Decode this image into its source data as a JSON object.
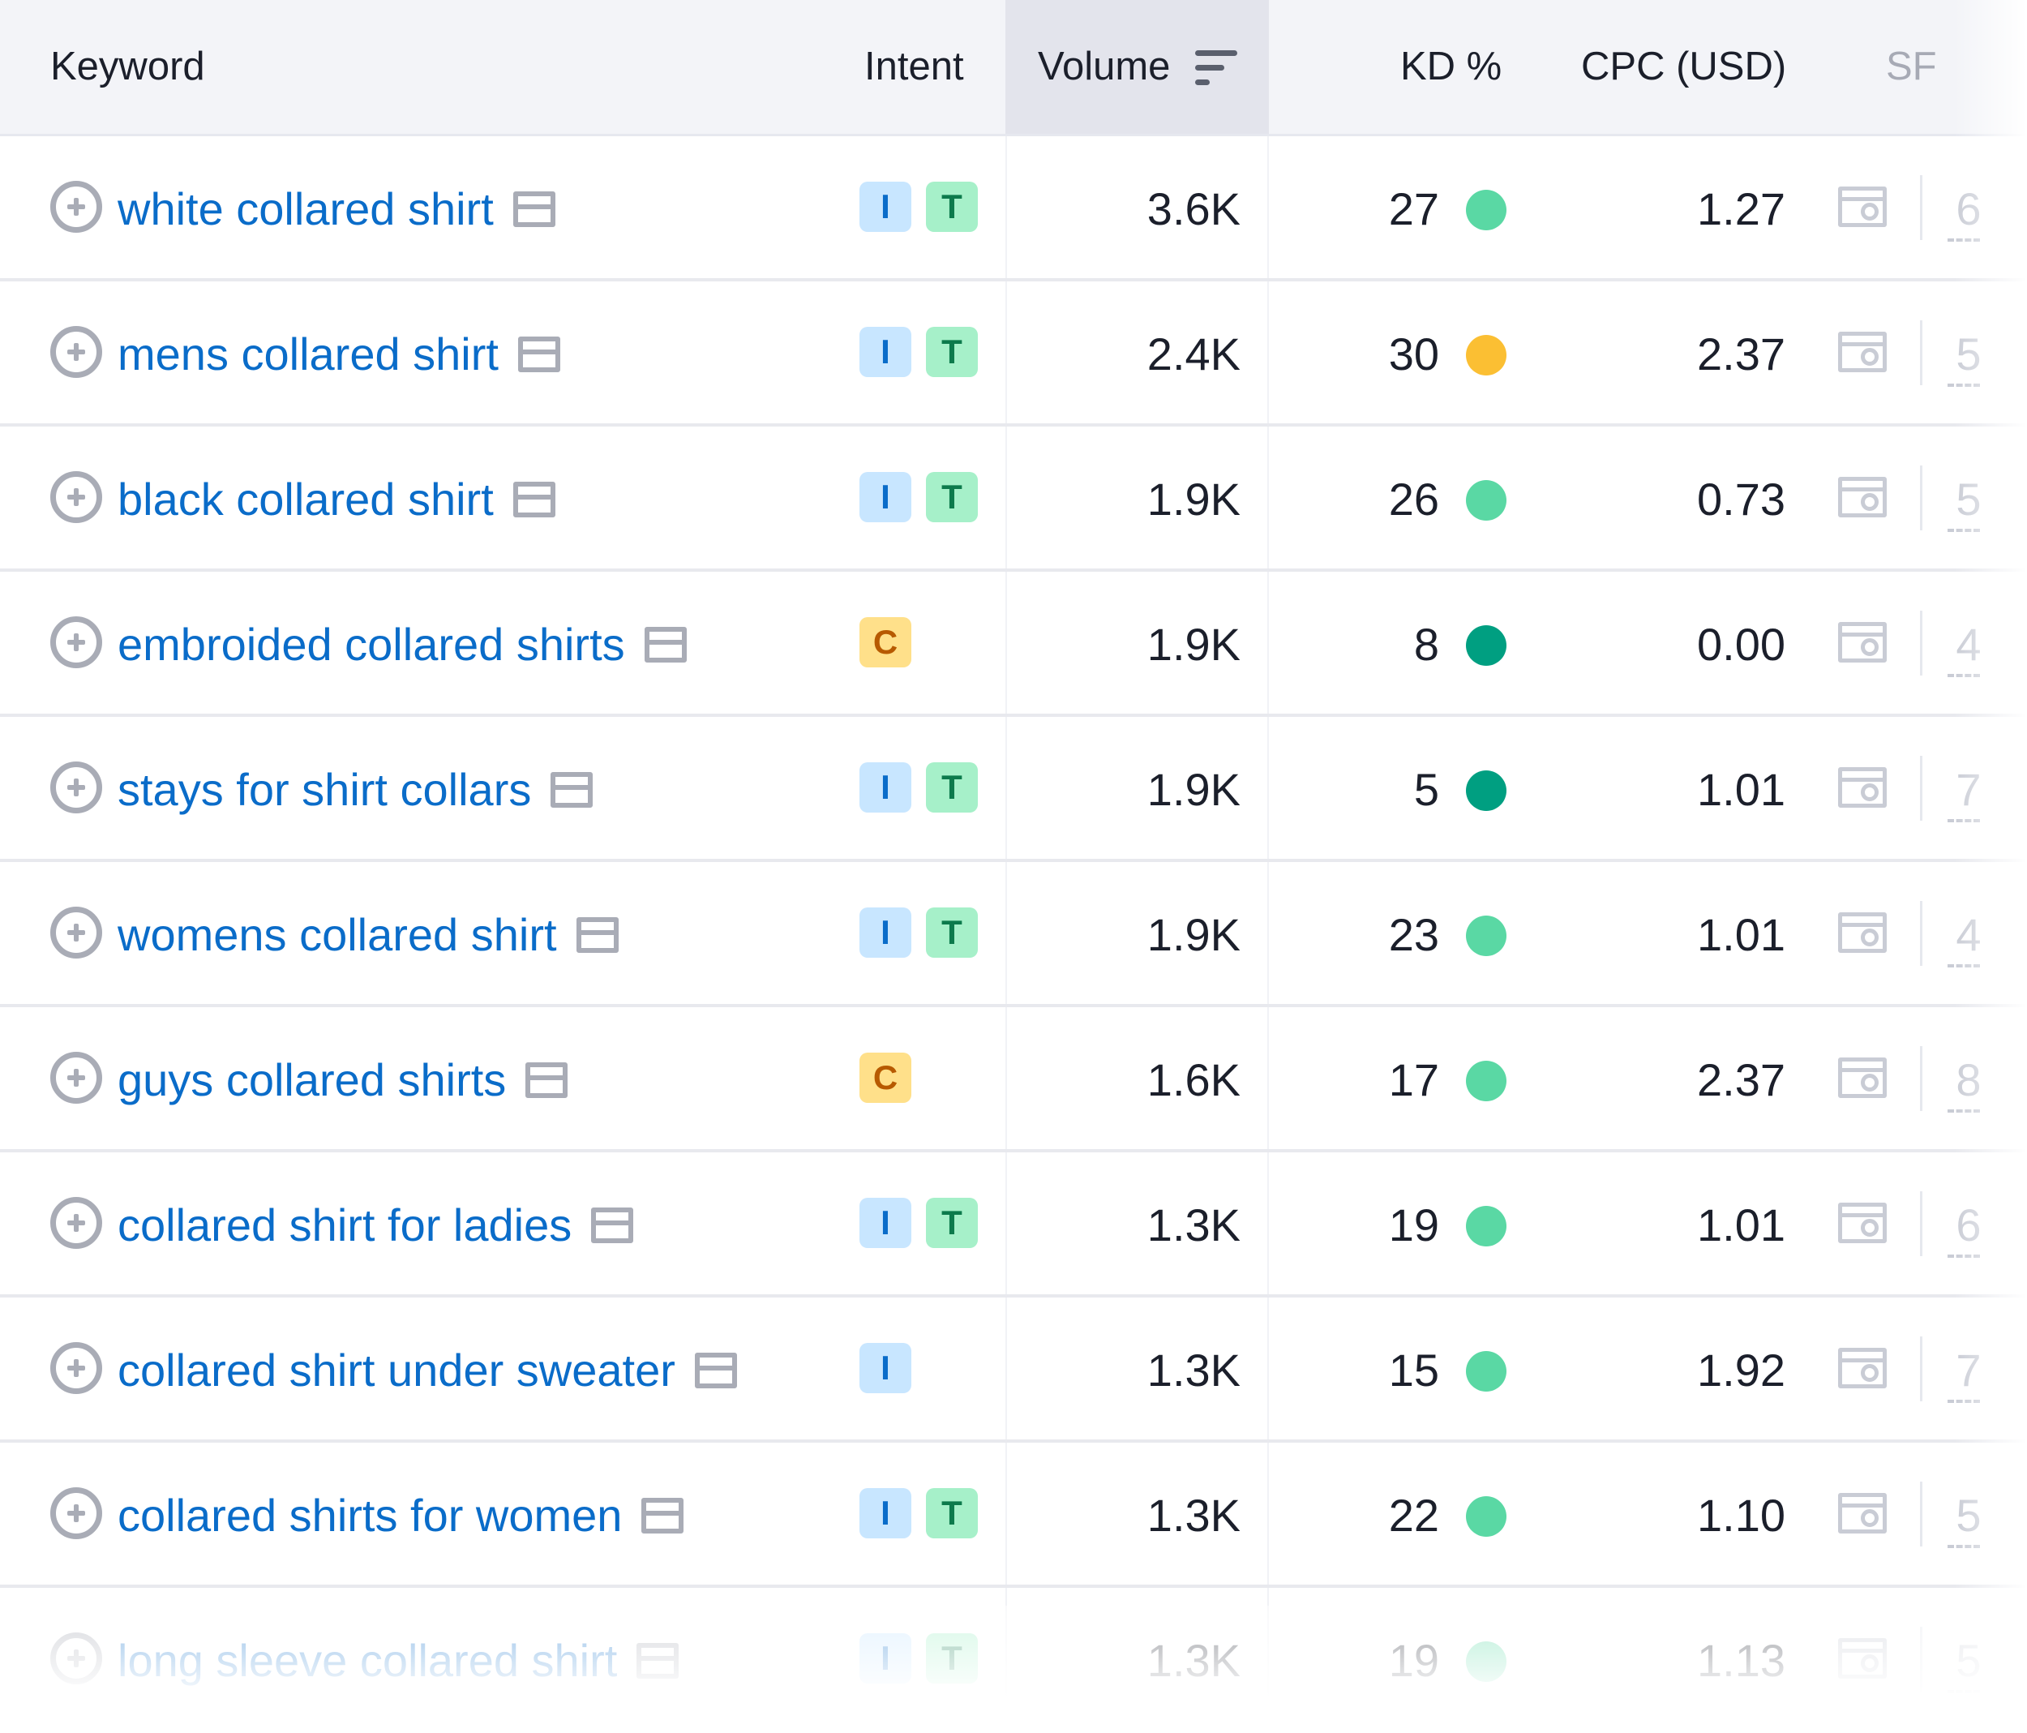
{
  "header": {
    "keyword": "Keyword",
    "intent": "Intent",
    "volume": "Volume",
    "kd": "KD %",
    "cpc": "CPC (USD)",
    "sf": "SF"
  },
  "rows": [
    {
      "keyword": "white collared shirt",
      "intents": [
        "I",
        "T"
      ],
      "volume": "3.6K",
      "kd": "27",
      "kd_color": "#5ad8a4",
      "cpc": "1.27",
      "sf": "6"
    },
    {
      "keyword": "mens collared shirt",
      "intents": [
        "I",
        "T"
      ],
      "volume": "2.4K",
      "kd": "30",
      "kd_color": "#fbbf33",
      "cpc": "2.37",
      "sf": "5"
    },
    {
      "keyword": "black collared shirt",
      "intents": [
        "I",
        "T"
      ],
      "volume": "1.9K",
      "kd": "26",
      "kd_color": "#5ad8a4",
      "cpc": "0.73",
      "sf": "5"
    },
    {
      "keyword": "embroided collared shirts",
      "intents": [
        "C"
      ],
      "volume": "1.9K",
      "kd": "8",
      "kd_color": "#009f81",
      "cpc": "0.00",
      "sf": "4"
    },
    {
      "keyword": "stays for shirt collars",
      "intents": [
        "I",
        "T"
      ],
      "volume": "1.9K",
      "kd": "5",
      "kd_color": "#009f81",
      "cpc": "1.01",
      "sf": "7"
    },
    {
      "keyword": "womens collared shirt",
      "intents": [
        "I",
        "T"
      ],
      "volume": "1.9K",
      "kd": "23",
      "kd_color": "#5ad8a4",
      "cpc": "1.01",
      "sf": "4"
    },
    {
      "keyword": "guys collared shirts",
      "intents": [
        "C"
      ],
      "volume": "1.6K",
      "kd": "17",
      "kd_color": "#5ad8a4",
      "cpc": "2.37",
      "sf": "8"
    },
    {
      "keyword": "collared shirt for ladies",
      "intents": [
        "I",
        "T"
      ],
      "volume": "1.3K",
      "kd": "19",
      "kd_color": "#5ad8a4",
      "cpc": "1.01",
      "sf": "6"
    },
    {
      "keyword": "collared shirt under sweater",
      "intents": [
        "I"
      ],
      "volume": "1.3K",
      "kd": "15",
      "kd_color": "#5ad8a4",
      "cpc": "1.92",
      "sf": "7"
    },
    {
      "keyword": "collared shirts for women",
      "intents": [
        "I",
        "T"
      ],
      "volume": "1.3K",
      "kd": "22",
      "kd_color": "#5ad8a4",
      "cpc": "1.10",
      "sf": "5"
    },
    {
      "keyword": "long sleeve collared shirt",
      "intents": [
        "I",
        "T"
      ],
      "volume": "1.3K",
      "kd": "19",
      "kd_color": "#5ad8a4",
      "cpc": "1.13",
      "sf": "5"
    }
  ]
}
